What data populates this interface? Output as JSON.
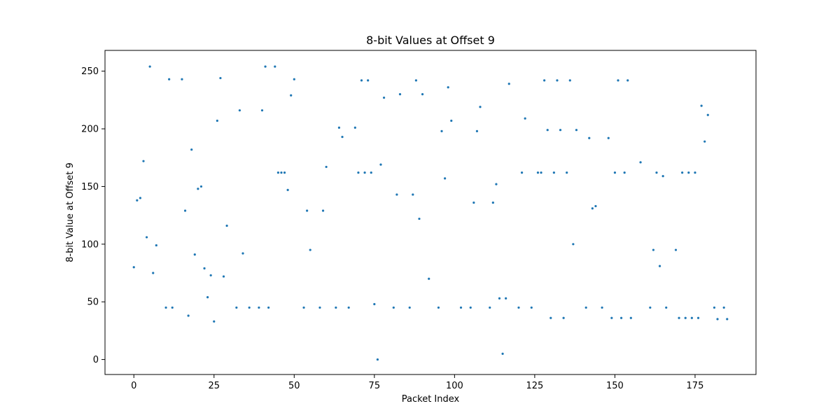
{
  "chart_data": {
    "type": "scatter",
    "title": "8-bit Values at Offset 9",
    "xlabel": "Packet Index",
    "ylabel": "8-bit Value at Offset 9",
    "xlim": [
      -9,
      194
    ],
    "ylim": [
      -13,
      268
    ],
    "xticks": [
      0,
      25,
      50,
      75,
      100,
      125,
      150,
      175
    ],
    "yticks": [
      0,
      50,
      100,
      150,
      200,
      250
    ],
    "grid": false,
    "point_color": "#1f77b4",
    "x": [
      0,
      1,
      2,
      3,
      4,
      5,
      6,
      7,
      10,
      11,
      12,
      15,
      16,
      17,
      18,
      19,
      20,
      21,
      22,
      23,
      24,
      25,
      26,
      27,
      28,
      29,
      32,
      33,
      34,
      36,
      39,
      40,
      41,
      42,
      44,
      45,
      46,
      47,
      48,
      49,
      50,
      53,
      54,
      55,
      58,
      59,
      60,
      63,
      64,
      65,
      67,
      69,
      70,
      71,
      72,
      73,
      74,
      75,
      76,
      77,
      78,
      81,
      82,
      83,
      86,
      87,
      88,
      89,
      90,
      92,
      95,
      96,
      97,
      98,
      99,
      102,
      105,
      106,
      107,
      108,
      111,
      112,
      113,
      114,
      115,
      116,
      117,
      120,
      121,
      122,
      124,
      126,
      127,
      128,
      129,
      130,
      131,
      132,
      133,
      134,
      135,
      136,
      137,
      138,
      141,
      142,
      143,
      144,
      146,
      148,
      149,
      150,
      151,
      152,
      153,
      154,
      155,
      158,
      161,
      162,
      163,
      164,
      165,
      166,
      169,
      170,
      171,
      172,
      173,
      174,
      175,
      176,
      177,
      178,
      179,
      181,
      182,
      184,
      185
    ],
    "y": [
      80,
      138,
      140,
      172,
      106,
      254,
      75,
      99,
      45,
      243,
      45,
      243,
      129,
      38,
      182,
      91,
      148,
      150,
      79,
      54,
      73,
      33,
      207,
      244,
      72,
      116,
      45,
      216,
      92,
      45,
      45,
      216,
      254,
      45,
      254,
      162,
      162,
      162,
      147,
      229,
      243,
      45,
      129,
      95,
      45,
      129,
      167,
      45,
      201,
      193,
      45,
      201,
      162,
      242,
      162,
      242,
      162,
      48,
      0,
      169,
      227,
      45,
      143,
      230,
      45,
      143,
      242,
      122,
      230,
      70,
      45,
      198,
      157,
      236,
      207,
      45,
      45,
      136,
      198,
      219,
      45,
      136,
      152,
      53,
      5,
      53,
      239,
      45,
      162,
      209,
      45,
      162,
      162,
      242,
      199,
      36,
      162,
      242,
      199,
      36,
      162,
      242,
      100,
      199,
      45,
      192,
      131,
      133,
      45,
      192,
      36,
      162,
      242,
      36,
      162,
      242,
      36,
      171,
      45,
      95,
      162,
      81,
      159,
      45,
      95,
      36,
      162,
      36,
      162,
      36,
      162,
      36,
      220,
      189,
      212,
      45,
      35,
      45,
      35
    ]
  }
}
